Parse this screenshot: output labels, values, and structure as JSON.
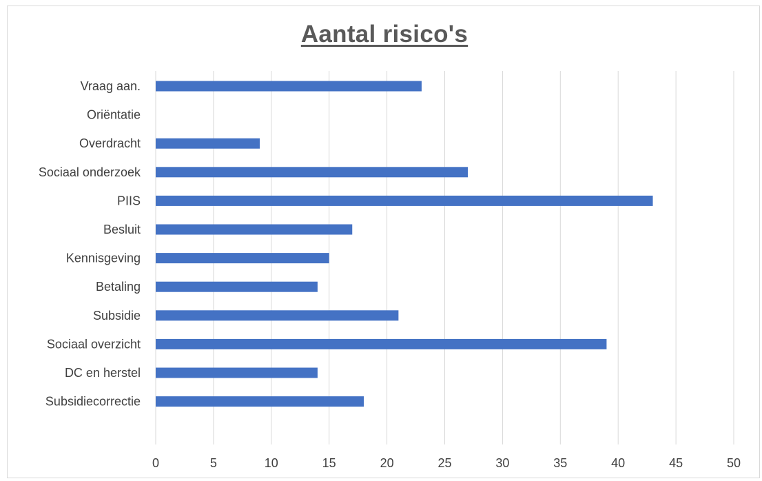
{
  "chart_data": {
    "type": "bar",
    "orientation": "horizontal",
    "title": "Aantal risico's",
    "categories": [
      "Vraag  aan.",
      "Oriëntatie",
      "Overdracht",
      "Sociaal onderzoek",
      "PIIS",
      "Besluit",
      "Kennisgeving",
      "Betaling",
      "Subsidie",
      "Sociaal overzicht",
      "DC en herstel",
      "Subsidiecorrectie"
    ],
    "values": [
      23,
      0,
      9,
      27,
      43,
      17,
      15,
      14,
      21,
      39,
      14,
      18
    ],
    "xlim": [
      0,
      50
    ],
    "x_ticks": [
      0,
      5,
      10,
      15,
      20,
      25,
      30,
      35,
      40,
      45,
      50
    ],
    "grid": true,
    "bar_color": "#4472c4",
    "xlabel": "",
    "ylabel": ""
  }
}
